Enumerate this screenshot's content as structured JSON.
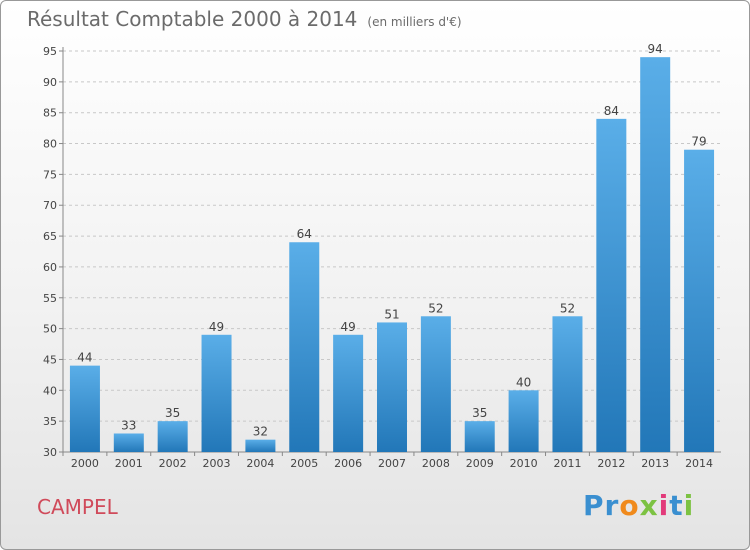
{
  "header": {
    "title": "Résultat Comptable 2000 à 2014",
    "subtitle": "(en milliers d'€)"
  },
  "footer": {
    "commune": "CAMPEL",
    "logo_text": "Proxiti"
  },
  "colors": {
    "bar_light": "#5aaee8",
    "bar_dark": "#2277b8",
    "commune": "#d04a5a",
    "logo_letters": [
      "#3a8fd0",
      "#3a8fd0",
      "#f08a1c",
      "#7cc242",
      "#e23a7a",
      "#3a8fd0",
      "#7cc242"
    ]
  },
  "chart_data": {
    "type": "bar",
    "title": "Résultat Comptable 2000 à 2014",
    "subtitle": "(en milliers d'€)",
    "categories": [
      "2000",
      "2001",
      "2002",
      "2003",
      "2004",
      "2005",
      "2006",
      "2007",
      "2008",
      "2009",
      "2010",
      "2011",
      "2012",
      "2013",
      "2014"
    ],
    "values": [
      44,
      33,
      35,
      49,
      32,
      64,
      49,
      51,
      52,
      35,
      40,
      52,
      84,
      94,
      79
    ],
    "ylim": [
      30,
      95
    ],
    "yticks": [
      30,
      35,
      40,
      45,
      50,
      55,
      60,
      65,
      70,
      75,
      80,
      85,
      90,
      95
    ],
    "grid": true,
    "data_labels": true
  }
}
